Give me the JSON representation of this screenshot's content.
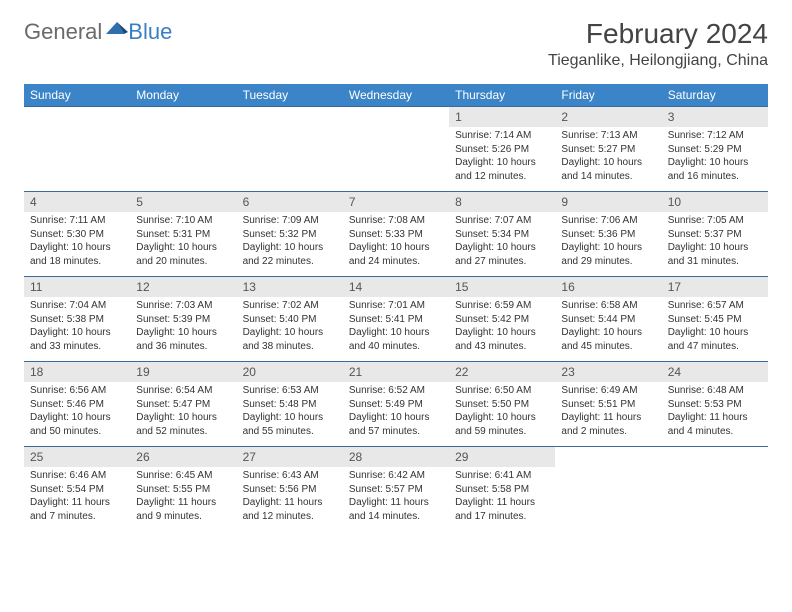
{
  "logo": {
    "general": "General",
    "blue": "Blue"
  },
  "title": "February 2024",
  "location": "Tieganlike, Heilongjiang, China",
  "colors": {
    "header_bg": "#3a84c7",
    "header_text": "#ffffff",
    "daynum_bg": "#e8e8e8",
    "divider": "#3a6a9a",
    "logo_gray": "#6a6a6a",
    "logo_blue": "#3a7fc4"
  },
  "weekdays": [
    "Sunday",
    "Monday",
    "Tuesday",
    "Wednesday",
    "Thursday",
    "Friday",
    "Saturday"
  ],
  "weeks": [
    [
      null,
      null,
      null,
      null,
      {
        "n": "1",
        "sr": "7:14 AM",
        "ss": "5:26 PM",
        "dl": "10 hours and 12 minutes."
      },
      {
        "n": "2",
        "sr": "7:13 AM",
        "ss": "5:27 PM",
        "dl": "10 hours and 14 minutes."
      },
      {
        "n": "3",
        "sr": "7:12 AM",
        "ss": "5:29 PM",
        "dl": "10 hours and 16 minutes."
      }
    ],
    [
      {
        "n": "4",
        "sr": "7:11 AM",
        "ss": "5:30 PM",
        "dl": "10 hours and 18 minutes."
      },
      {
        "n": "5",
        "sr": "7:10 AM",
        "ss": "5:31 PM",
        "dl": "10 hours and 20 minutes."
      },
      {
        "n": "6",
        "sr": "7:09 AM",
        "ss": "5:32 PM",
        "dl": "10 hours and 22 minutes."
      },
      {
        "n": "7",
        "sr": "7:08 AM",
        "ss": "5:33 PM",
        "dl": "10 hours and 24 minutes."
      },
      {
        "n": "8",
        "sr": "7:07 AM",
        "ss": "5:34 PM",
        "dl": "10 hours and 27 minutes."
      },
      {
        "n": "9",
        "sr": "7:06 AM",
        "ss": "5:36 PM",
        "dl": "10 hours and 29 minutes."
      },
      {
        "n": "10",
        "sr": "7:05 AM",
        "ss": "5:37 PM",
        "dl": "10 hours and 31 minutes."
      }
    ],
    [
      {
        "n": "11",
        "sr": "7:04 AM",
        "ss": "5:38 PM",
        "dl": "10 hours and 33 minutes."
      },
      {
        "n": "12",
        "sr": "7:03 AM",
        "ss": "5:39 PM",
        "dl": "10 hours and 36 minutes."
      },
      {
        "n": "13",
        "sr": "7:02 AM",
        "ss": "5:40 PM",
        "dl": "10 hours and 38 minutes."
      },
      {
        "n": "14",
        "sr": "7:01 AM",
        "ss": "5:41 PM",
        "dl": "10 hours and 40 minutes."
      },
      {
        "n": "15",
        "sr": "6:59 AM",
        "ss": "5:42 PM",
        "dl": "10 hours and 43 minutes."
      },
      {
        "n": "16",
        "sr": "6:58 AM",
        "ss": "5:44 PM",
        "dl": "10 hours and 45 minutes."
      },
      {
        "n": "17",
        "sr": "6:57 AM",
        "ss": "5:45 PM",
        "dl": "10 hours and 47 minutes."
      }
    ],
    [
      {
        "n": "18",
        "sr": "6:56 AM",
        "ss": "5:46 PM",
        "dl": "10 hours and 50 minutes."
      },
      {
        "n": "19",
        "sr": "6:54 AM",
        "ss": "5:47 PM",
        "dl": "10 hours and 52 minutes."
      },
      {
        "n": "20",
        "sr": "6:53 AM",
        "ss": "5:48 PM",
        "dl": "10 hours and 55 minutes."
      },
      {
        "n": "21",
        "sr": "6:52 AM",
        "ss": "5:49 PM",
        "dl": "10 hours and 57 minutes."
      },
      {
        "n": "22",
        "sr": "6:50 AM",
        "ss": "5:50 PM",
        "dl": "10 hours and 59 minutes."
      },
      {
        "n": "23",
        "sr": "6:49 AM",
        "ss": "5:51 PM",
        "dl": "11 hours and 2 minutes."
      },
      {
        "n": "24",
        "sr": "6:48 AM",
        "ss": "5:53 PM",
        "dl": "11 hours and 4 minutes."
      }
    ],
    [
      {
        "n": "25",
        "sr": "6:46 AM",
        "ss": "5:54 PM",
        "dl": "11 hours and 7 minutes."
      },
      {
        "n": "26",
        "sr": "6:45 AM",
        "ss": "5:55 PM",
        "dl": "11 hours and 9 minutes."
      },
      {
        "n": "27",
        "sr": "6:43 AM",
        "ss": "5:56 PM",
        "dl": "11 hours and 12 minutes."
      },
      {
        "n": "28",
        "sr": "6:42 AM",
        "ss": "5:57 PM",
        "dl": "11 hours and 14 minutes."
      },
      {
        "n": "29",
        "sr": "6:41 AM",
        "ss": "5:58 PM",
        "dl": "11 hours and 17 minutes."
      },
      null,
      null
    ]
  ],
  "labels": {
    "sunrise": "Sunrise:",
    "sunset": "Sunset:",
    "daylight": "Daylight:"
  }
}
